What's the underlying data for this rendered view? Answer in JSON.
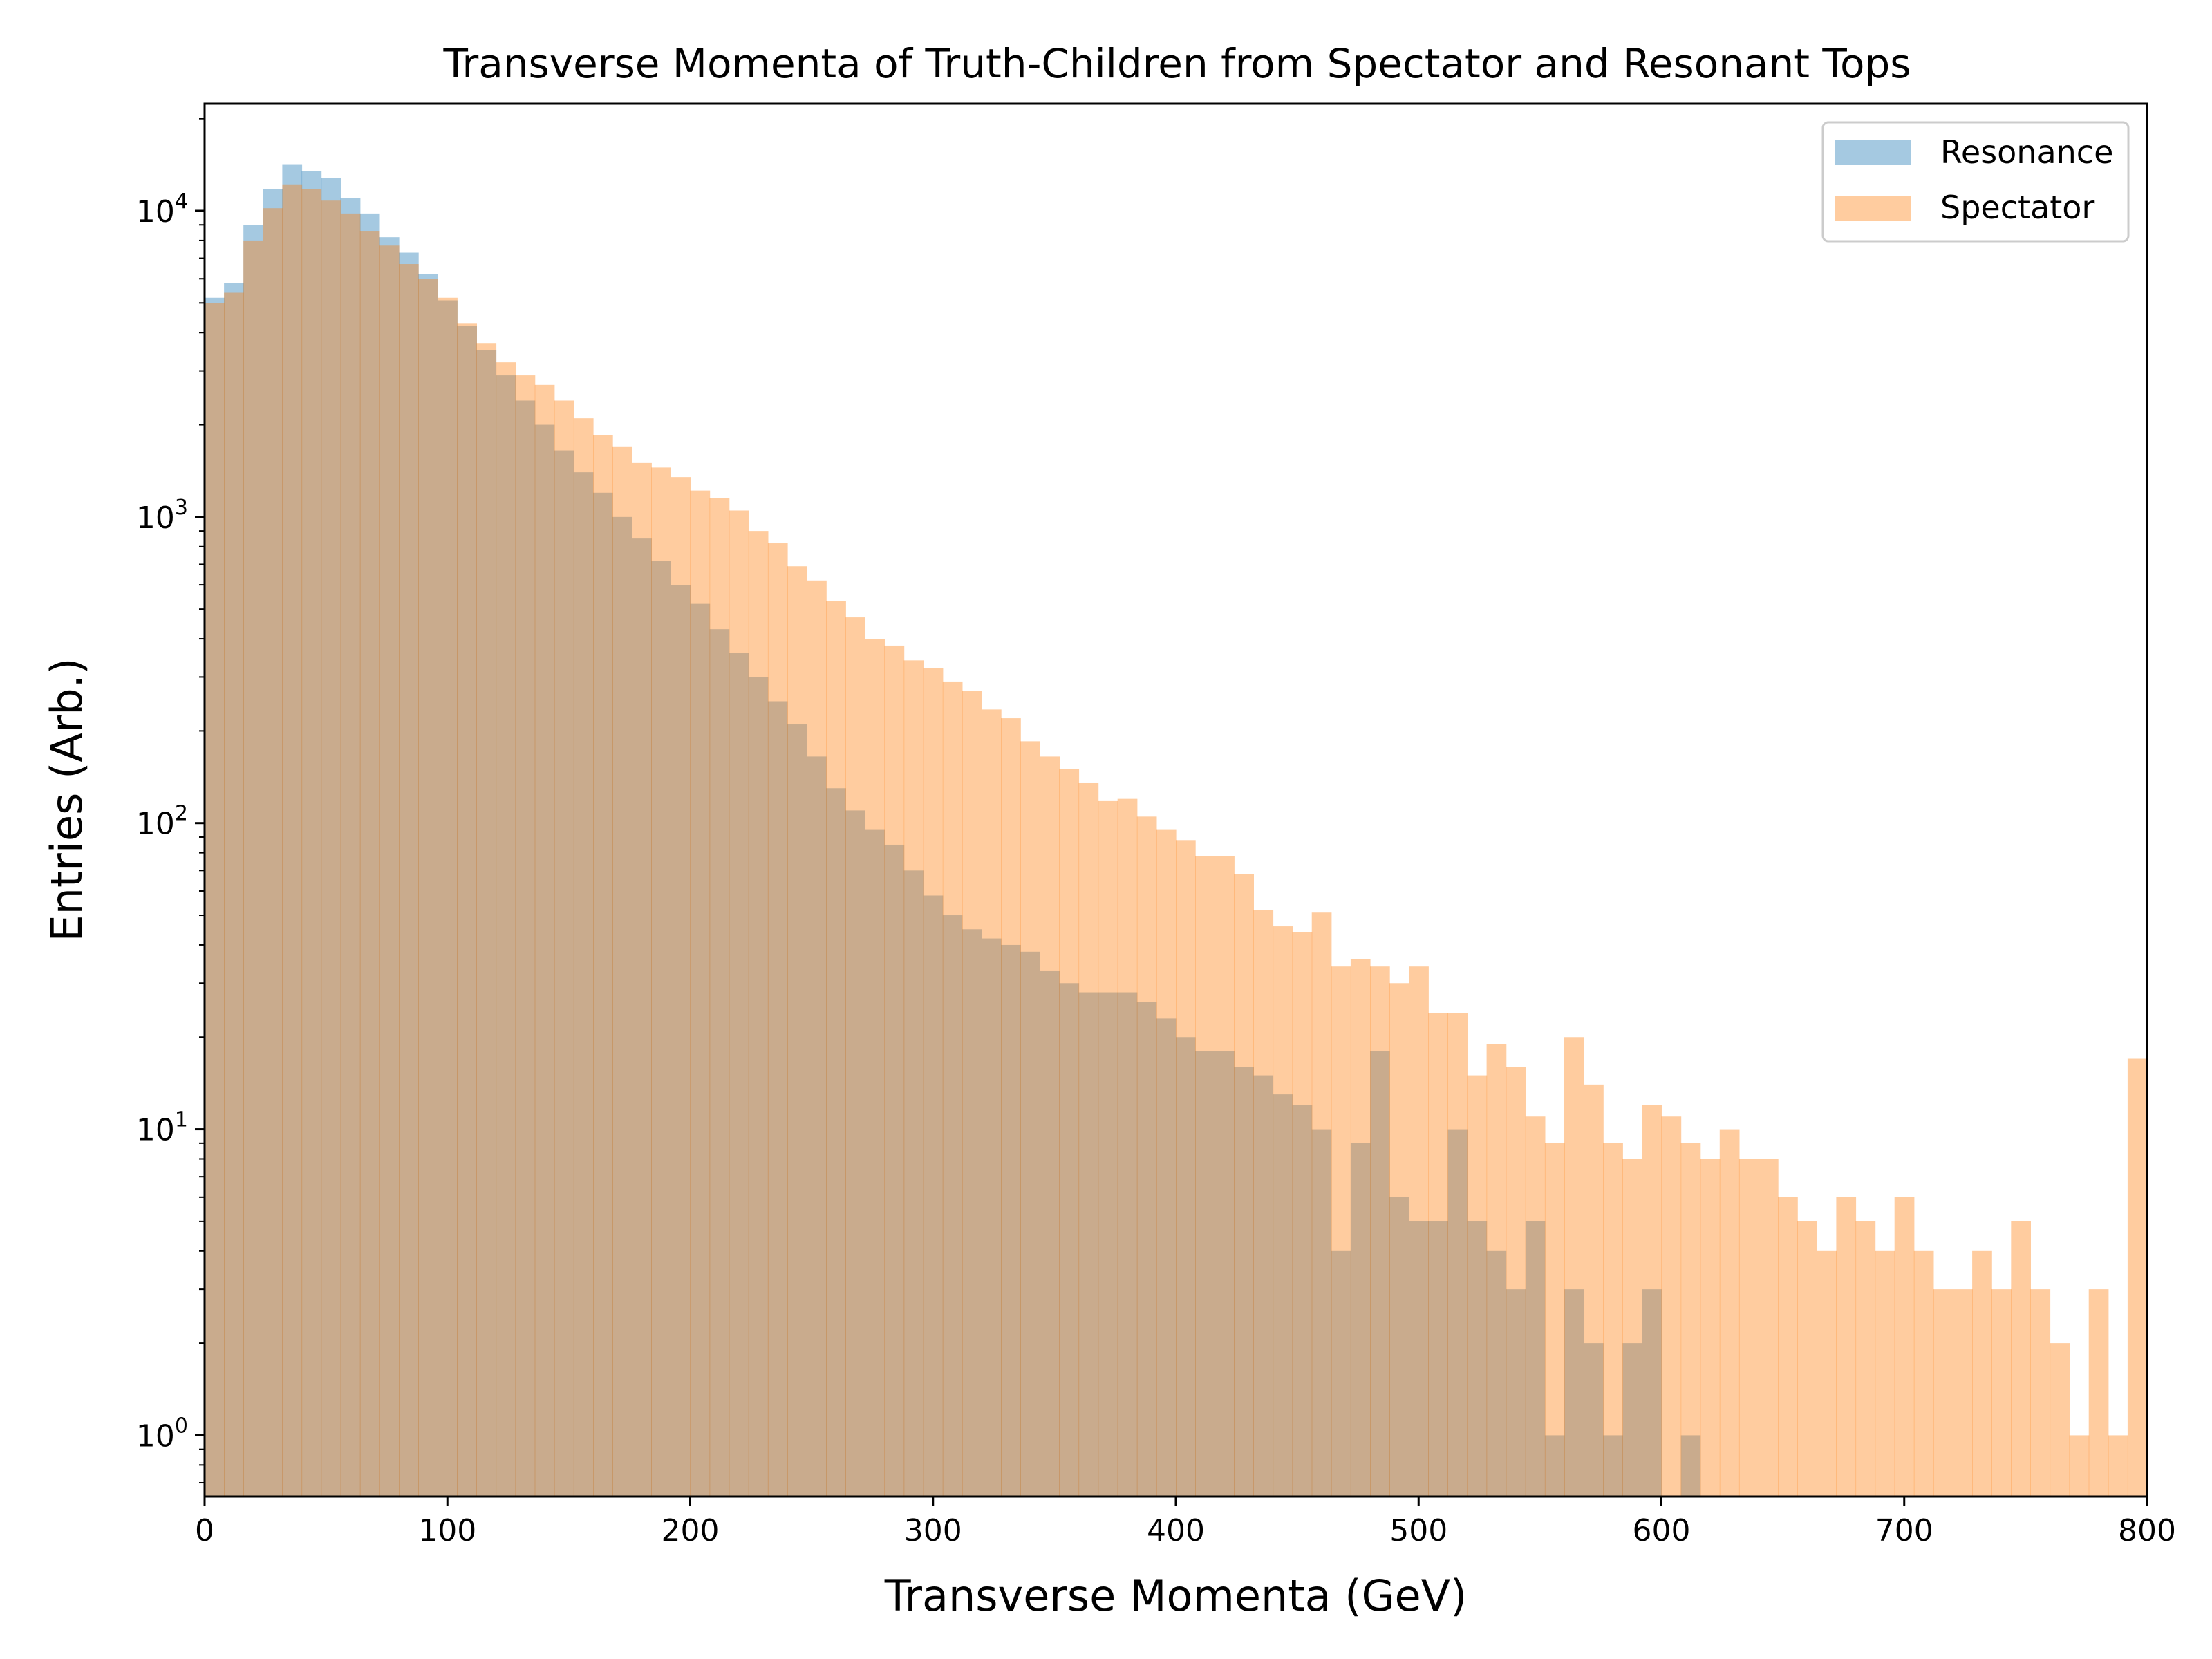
{
  "chart_data": {
    "type": "bar",
    "histogram": true,
    "title": "Transverse Momenta of Truth-Children from Spectator and Resonant Tops",
    "xlabel": "Transverse Momenta (GeV)",
    "ylabel": "Entries (Arb.)",
    "xlim": [
      0,
      800
    ],
    "ylim_log10": [
      -0.2,
      4.35
    ],
    "yscale": "log",
    "bin_width": 8,
    "x_ticks": [
      0,
      100,
      200,
      300,
      400,
      500,
      600,
      700,
      800
    ],
    "y_ticks": [
      {
        "base": "10",
        "exp": "0",
        "log": 0
      },
      {
        "base": "10",
        "exp": "1",
        "log": 1
      },
      {
        "base": "10",
        "exp": "2",
        "log": 2
      },
      {
        "base": "10",
        "exp": "3",
        "log": 3
      },
      {
        "base": "10",
        "exp": "4",
        "log": 4
      }
    ],
    "legend_position": "top-right",
    "series": [
      {
        "name": "Resonance",
        "color": "#1f77b4",
        "alpha": 0.4,
        "values": [
          5200,
          5800,
          9000,
          11800,
          14200,
          13500,
          12800,
          11000,
          9800,
          8200,
          7300,
          6200,
          5100,
          4200,
          3500,
          2900,
          2400,
          2000,
          1650,
          1400,
          1200,
          1000,
          850,
          720,
          600,
          520,
          430,
          360,
          300,
          250,
          210,
          165,
          130,
          110,
          95,
          85,
          70,
          58,
          50,
          45,
          42,
          40,
          38,
          33,
          30,
          28,
          28,
          28,
          26,
          23,
          20,
          18,
          18,
          16,
          15,
          13,
          12,
          10,
          4,
          9,
          18,
          6,
          5,
          5,
          10,
          5,
          4,
          3,
          5,
          1,
          3,
          2,
          1,
          2,
          3,
          0.5,
          1,
          0.5,
          0.5,
          0.5,
          0.5,
          0.5,
          0.5,
          0.5,
          0.5,
          0.5,
          0.5,
          0.5,
          0.5,
          0.5,
          0.5,
          0.5,
          0.5,
          0.5,
          0.5,
          0.5,
          0.5,
          0.5,
          0.5,
          0.5
        ]
      },
      {
        "name": "Spectator",
        "color": "#ff7f0e",
        "alpha": 0.4,
        "values": [
          5000,
          5400,
          8000,
          10200,
          12200,
          11800,
          10800,
          9800,
          8600,
          7700,
          6700,
          6000,
          5200,
          4300,
          3700,
          3200,
          2900,
          2700,
          2400,
          2100,
          1850,
          1700,
          1500,
          1450,
          1350,
          1220,
          1150,
          1050,
          900,
          820,
          690,
          620,
          530,
          470,
          400,
          380,
          340,
          320,
          290,
          270,
          235,
          220,
          185,
          165,
          150,
          135,
          118,
          120,
          105,
          95,
          88,
          78,
          78,
          68,
          52,
          46,
          44,
          51,
          34,
          36,
          34,
          30,
          34,
          24,
          24,
          15,
          19,
          16,
          11,
          9,
          20,
          14,
          9,
          8,
          12,
          11,
          9,
          8,
          10,
          8,
          8,
          6,
          5,
          4,
          6,
          5,
          4,
          6,
          4,
          3,
          3,
          4,
          3,
          5,
          3,
          2,
          1,
          3,
          1,
          17
        ]
      }
    ]
  }
}
